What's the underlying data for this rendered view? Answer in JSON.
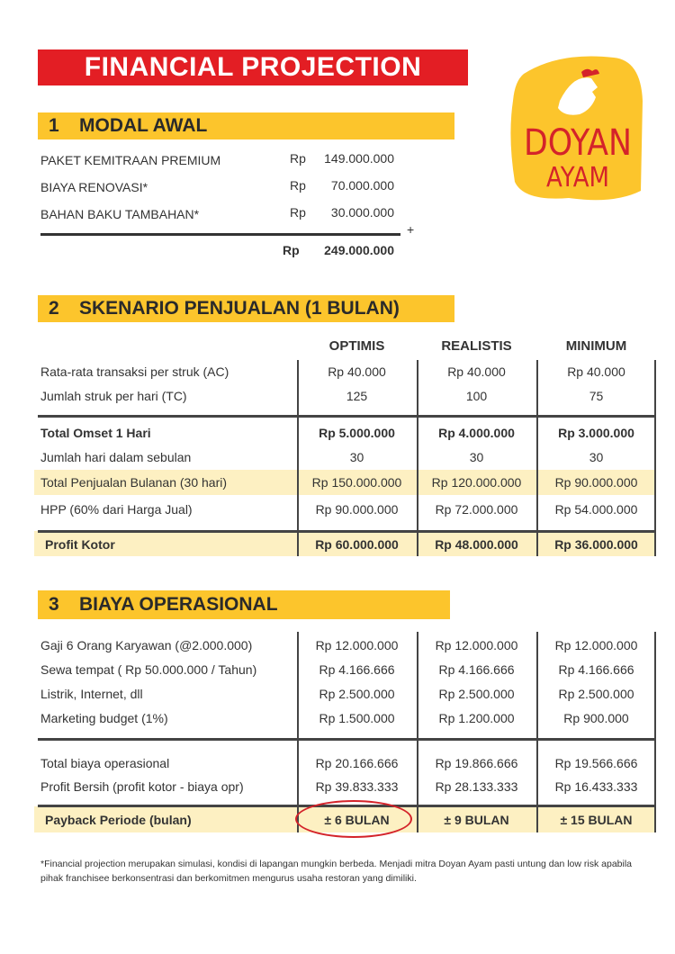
{
  "title": "FINANCIAL PROJECTION",
  "logo": {
    "line1": "DOYAN",
    "line2": "AYAM",
    "colors": {
      "background": "#fcc52c",
      "text": "#d4232a"
    }
  },
  "modal_awal": {
    "number": "1",
    "heading": "MODAL AWAL",
    "items": [
      {
        "label": "PAKET KEMITRAAN PREMIUM",
        "currency": "Rp",
        "amount": "149.000.000"
      },
      {
        "label": "BIAYA RENOVASI*",
        "currency": "Rp",
        "amount": "70.000.000"
      },
      {
        "label": "BAHAN BAKU TAMBAHAN*",
        "currency": "Rp",
        "amount": "30.000.000"
      }
    ],
    "plus_sign": "+",
    "total_currency": "Rp",
    "total": "249.000.000"
  },
  "skenario": {
    "number": "2",
    "heading": "SKENARIO PENJUALAN (1 BULAN)",
    "columns": [
      "OPTIMIS",
      "REALISTIS",
      "MINIMUM"
    ],
    "rows": [
      {
        "label": "Rata-rata transaksi per struk (AC)",
        "values": [
          "Rp 40.000",
          "Rp 40.000",
          "Rp 40.000"
        ]
      },
      {
        "label": "Jumlah struk per hari (TC)",
        "values": [
          "125",
          "100",
          "75"
        ]
      },
      {
        "label": "Total Omset 1 Hari",
        "values": [
          "Rp 5.000.000",
          "Rp 4.000.000",
          "Rp 3.000.000"
        ],
        "bold": true
      },
      {
        "label": "Jumlah hari dalam sebulan",
        "values": [
          "30",
          "30",
          "30"
        ]
      },
      {
        "label": "Total Penjualan Bulanan (30 hari)",
        "values": [
          "Rp 150.000.000",
          "Rp 120.000.000",
          "Rp 90.000.000"
        ],
        "highlight": true
      },
      {
        "label": "HPP (60% dari Harga Jual)",
        "values": [
          "Rp 90.000.000",
          "Rp 72.000.000",
          "Rp 54.000.000"
        ]
      },
      {
        "label": "Profit Kotor",
        "values": [
          "Rp 60.000.000",
          "Rp 48.000.000",
          "Rp 36.000.000"
        ],
        "bold": true,
        "highlight": true
      }
    ]
  },
  "operasional": {
    "number": "3",
    "heading": "BIAYA OPERASIONAL",
    "rows": [
      {
        "label": "Gaji 6 Orang Karyawan (@2.000.000)",
        "values": [
          "Rp 12.000.000",
          "Rp 12.000.000",
          "Rp 12.000.000"
        ]
      },
      {
        "label": "Sewa tempat ( Rp 50.000.000 / Tahun)",
        "values": [
          "Rp 4.166.666",
          "Rp 4.166.666",
          "Rp 4.166.666"
        ]
      },
      {
        "label": "Listrik, Internet, dll",
        "values": [
          "Rp 2.500.000",
          "Rp 2.500.000",
          "Rp 2.500.000"
        ]
      },
      {
        "label": "Marketing budget (1%)",
        "values": [
          "Rp 1.500.000",
          "Rp 1.200.000",
          "Rp 900.000"
        ]
      },
      {
        "label": "Total biaya operasional",
        "values": [
          "Rp 20.166.666",
          "Rp 19.866.666",
          "Rp 19.566.666"
        ]
      },
      {
        "label": "Profit Bersih (profit kotor - biaya opr)",
        "values": [
          "Rp 39.833.333",
          "Rp 28.133.333",
          "Rp 16.433.333"
        ]
      },
      {
        "label": "Payback Periode (bulan)",
        "values": [
          "± 6 BULAN",
          "± 9 BULAN",
          "± 15 BULAN"
        ],
        "bold": true,
        "highlight": true,
        "circled": 0
      }
    ]
  },
  "footnote": "*Financial projection merupakan simulasi, kondisi di lapangan mungkin berbeda. Menjadi mitra Doyan Ayam pasti untung dan low risk apabila pihak franchisee berkonsentrasi dan berkomitmen mengurus usaha restoran yang dimiliki.",
  "colors": {
    "title_bg": "#e31e24",
    "section_bg": "#fcc52c",
    "highlight_row": "#fdf0c2",
    "circle": "#d4232a"
  }
}
